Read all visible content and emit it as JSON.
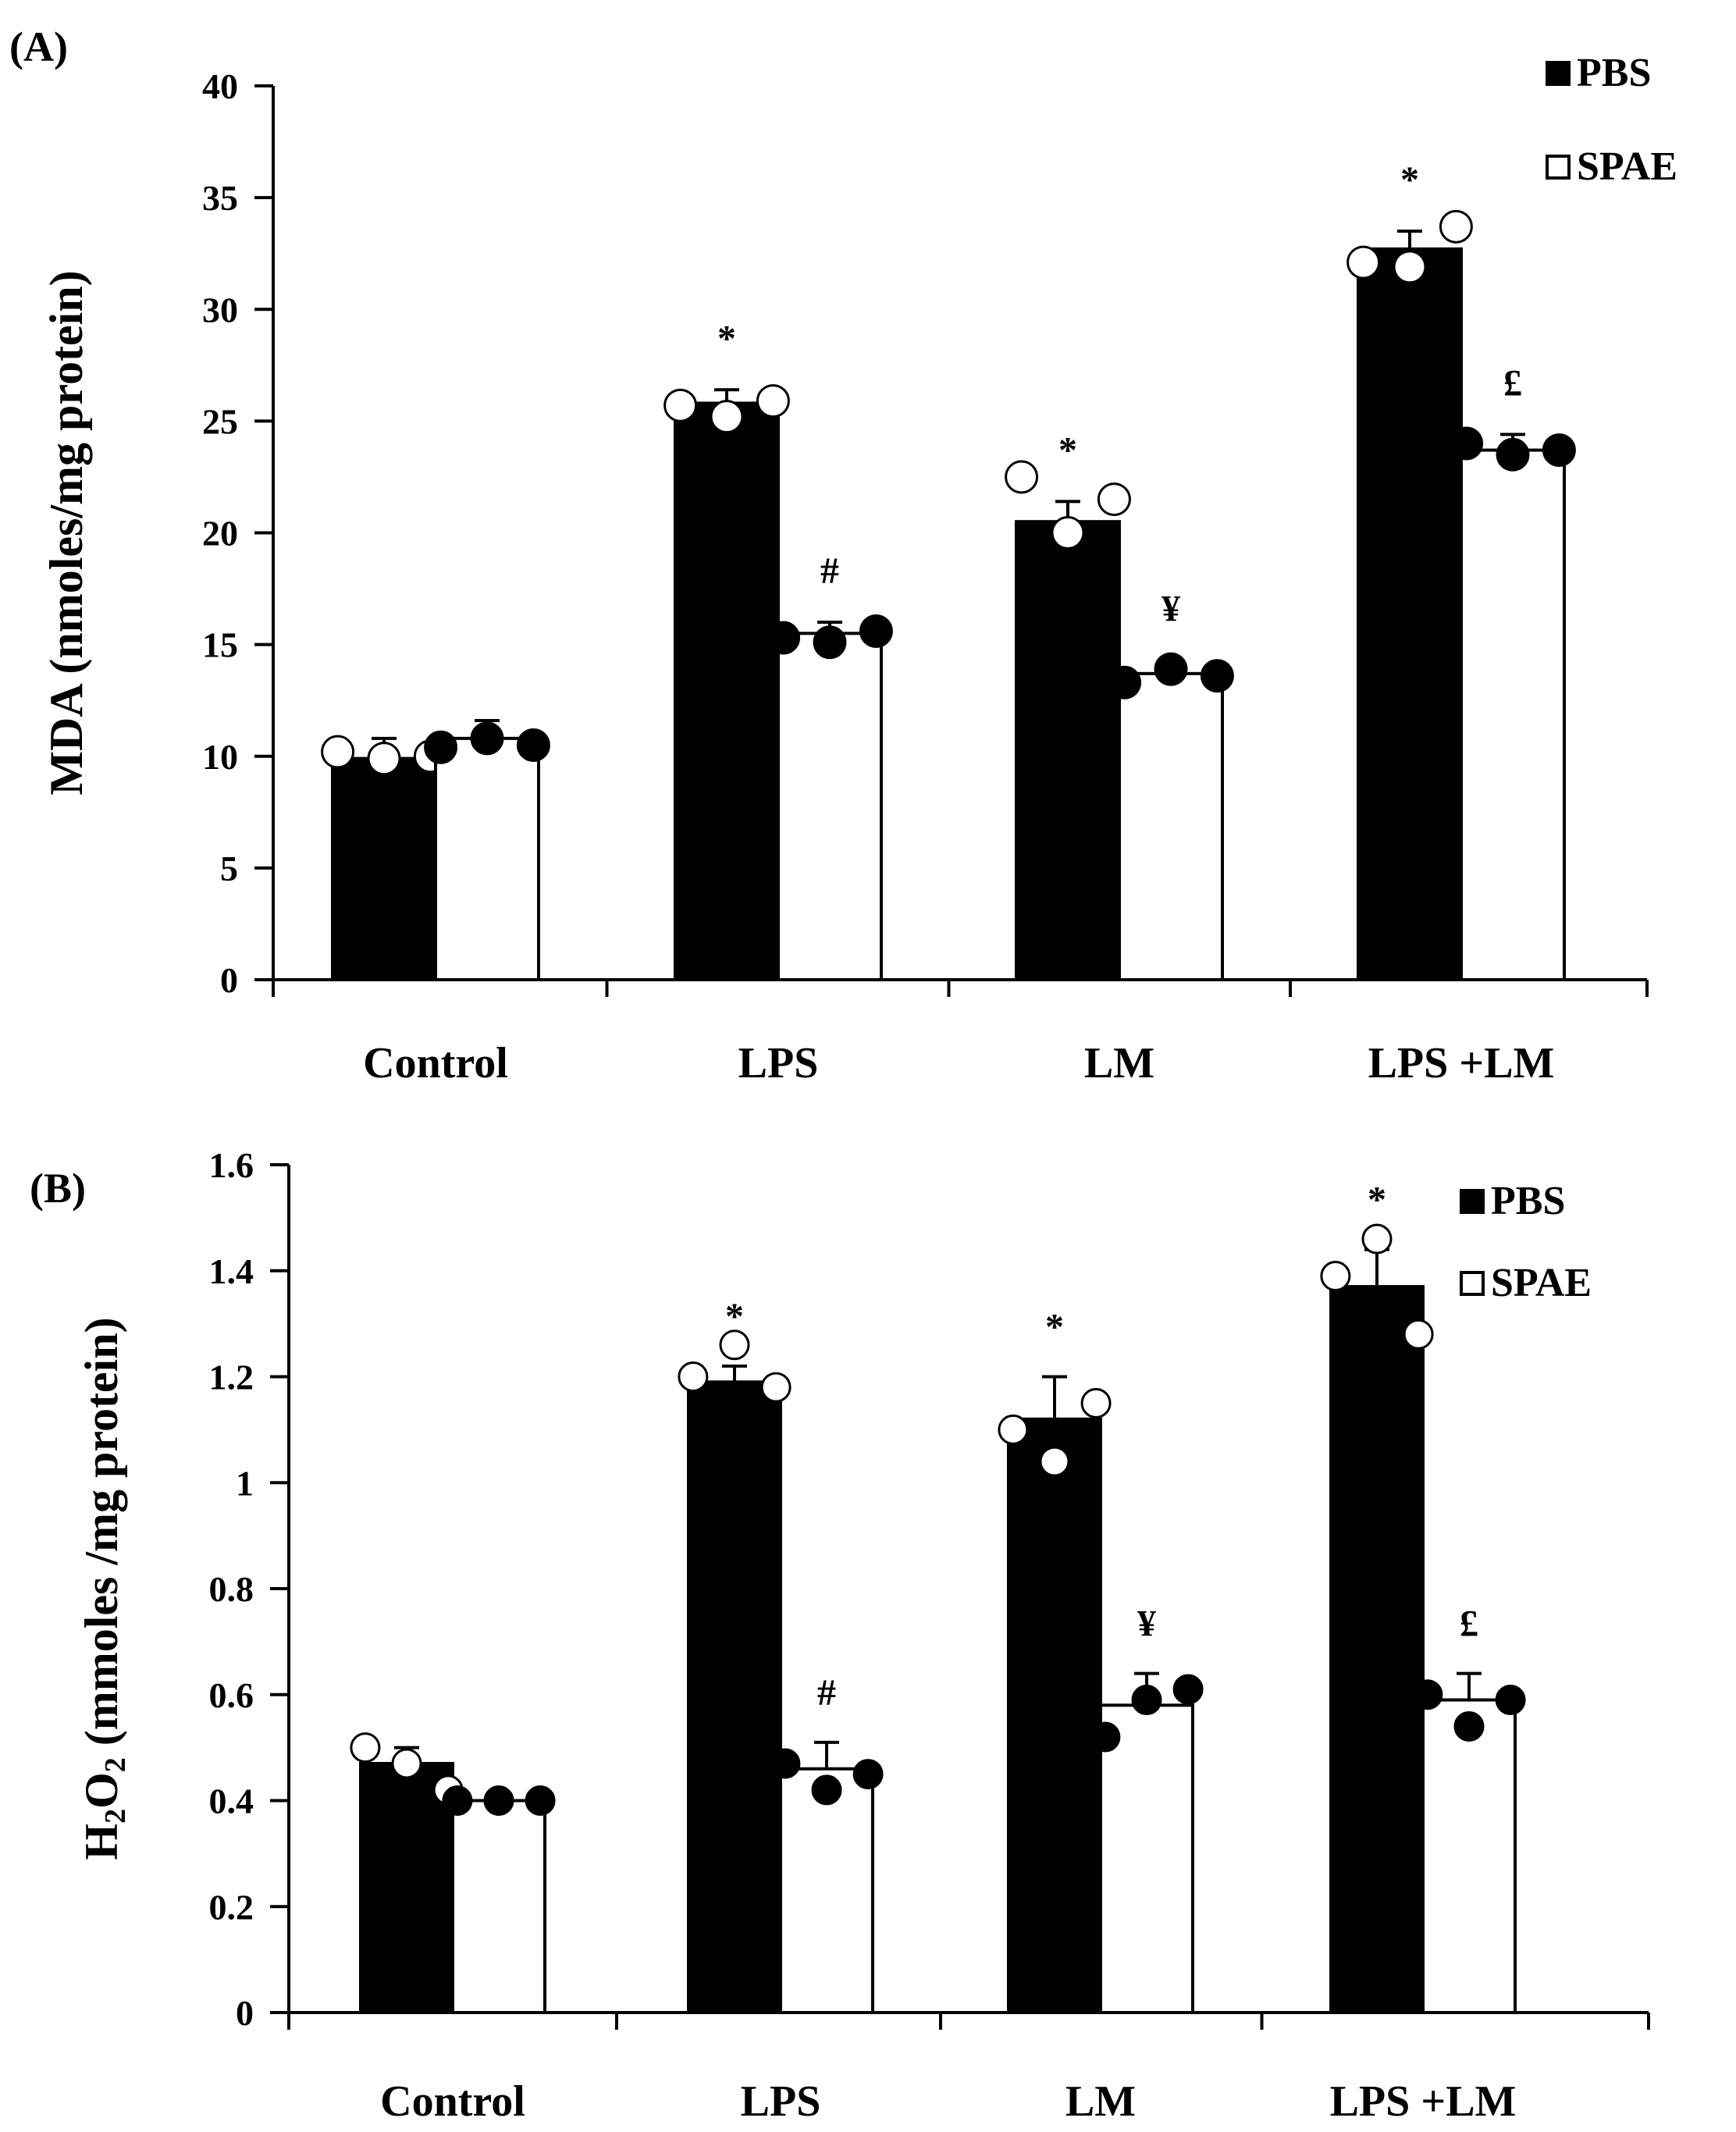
{
  "chart_data": [
    {
      "panel_label": "(A)",
      "type": "bar",
      "categories": [
        "Control",
        "LPS",
        "LM",
        "LPS +LM"
      ],
      "ylabel": "MDA (nmoles/mg protein)",
      "ylabel_parts": [
        "MDA (nmoles/mg protein)"
      ],
      "ylim": [
        0,
        40
      ],
      "yticks": [
        0,
        5,
        10,
        15,
        20,
        25,
        30,
        35,
        40
      ],
      "ytick_labels": [
        "0",
        "5",
        "10",
        "15",
        "20",
        "25",
        "30",
        "35",
        "40"
      ],
      "legend": [
        "PBS",
        "SPAE"
      ],
      "legend_position": "top-right",
      "series": [
        {
          "name": "PBS",
          "fill": "#000000",
          "values": [
            9.9,
            25.8,
            20.5,
            32.7
          ],
          "errors": [
            0.9,
            0.6,
            0.9,
            0.8
          ],
          "points": [
            [
              10.2,
              9.9,
              10.0
            ],
            [
              25.7,
              25.2,
              25.9
            ],
            [
              22.5,
              20.0,
              21.5
            ],
            [
              32.1,
              31.9,
              33.7
            ]
          ],
          "point_style": "open",
          "annotations": [
            "",
            "*",
            "*",
            "*"
          ]
        },
        {
          "name": "SPAE",
          "fill": "#ffffff",
          "values": [
            10.8,
            15.5,
            13.7,
            23.7
          ],
          "errors": [
            0.8,
            0.5,
            0.6,
            0.7
          ],
          "points": [
            [
              10.4,
              10.8,
              10.5
            ],
            [
              15.3,
              15.1,
              15.6
            ],
            [
              13.3,
              13.9,
              13.6
            ],
            [
              24.0,
              23.5,
              23.7
            ]
          ],
          "point_style": "filled",
          "annotations": [
            "",
            "#",
            "¥",
            "£"
          ]
        }
      ]
    },
    {
      "panel_label": "(B)",
      "type": "bar",
      "categories": [
        "Control",
        "LPS",
        "LM",
        "LPS +LM"
      ],
      "ylabel": "H2O2 (mmoles /mg protein)",
      "ylabel_parts": [
        "H",
        "2",
        "O",
        "2",
        " (mmoles /mg protein)"
      ],
      "ylim": [
        0,
        1.6
      ],
      "yticks": [
        0,
        0.2,
        0.4,
        0.6,
        0.8,
        1.0,
        1.2,
        1.4,
        1.6
      ],
      "ytick_labels": [
        "0",
        "0.2",
        "0.4",
        "0.6",
        "0.8",
        "1",
        "1.2",
        "1.4",
        "1.6"
      ],
      "legend": [
        "PBS",
        "SPAE"
      ],
      "legend_position": "top-right",
      "series": [
        {
          "name": "PBS",
          "fill": "#000000",
          "values": [
            0.47,
            1.19,
            1.12,
            1.37
          ],
          "errors": [
            0.03,
            0.03,
            0.08,
            0.07
          ],
          "points": [
            [
              0.5,
              0.47,
              0.42
            ],
            [
              1.2,
              1.26,
              1.18
            ],
            [
              1.1,
              1.04,
              1.15
            ],
            [
              1.39,
              1.46,
              1.28
            ]
          ],
          "point_style": "open",
          "annotations": [
            "",
            "*",
            "*",
            "*"
          ]
        },
        {
          "name": "SPAE",
          "fill": "#ffffff",
          "values": [
            0.4,
            0.46,
            0.58,
            0.59
          ],
          "errors": [
            0.0,
            0.05,
            0.06,
            0.05
          ],
          "points": [
            [
              0.4,
              0.4,
              0.4
            ],
            [
              0.47,
              0.42,
              0.45
            ],
            [
              0.52,
              0.59,
              0.61
            ],
            [
              0.6,
              0.54,
              0.59
            ]
          ],
          "point_style": "filled",
          "annotations": [
            "",
            "#",
            "¥",
            "£"
          ]
        }
      ]
    }
  ]
}
